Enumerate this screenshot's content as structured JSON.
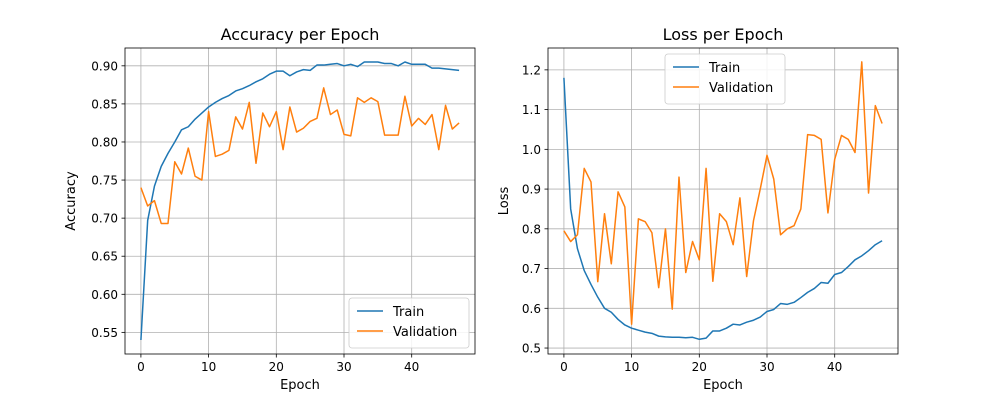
{
  "colors": {
    "train": "#1f77b4",
    "validation": "#ff7f0e",
    "grid": "#b0b0b0",
    "axis": "#000000"
  },
  "chart_data": [
    {
      "type": "line",
      "title": "Accuracy per Epoch",
      "xlabel": "Epoch",
      "ylabel": "Accuracy",
      "xlim": [
        -2.35,
        49.35
      ],
      "ylim": [
        0.5216,
        0.9234
      ],
      "xticks": [
        0,
        10,
        20,
        30,
        40
      ],
      "yticks": [
        0.55,
        0.6,
        0.65,
        0.7,
        0.75,
        0.8,
        0.85,
        0.9
      ],
      "ytick_labels": [
        "0.55",
        "0.60",
        "0.65",
        "0.70",
        "0.75",
        "0.80",
        "0.85",
        "0.90"
      ],
      "grid": true,
      "legend_position": "lower-right",
      "series": [
        {
          "name": "Train",
          "color": "#1f77b4",
          "x": [
            0,
            1,
            2,
            3,
            4,
            5,
            6,
            7,
            8,
            9,
            10,
            11,
            12,
            13,
            14,
            15,
            16,
            17,
            18,
            19,
            20,
            21,
            22,
            23,
            24,
            25,
            26,
            27,
            28,
            29,
            30,
            31,
            32,
            33,
            34,
            35,
            36,
            37,
            38,
            39,
            40,
            41,
            42,
            43,
            44,
            45,
            46,
            47
          ],
          "values": [
            0.54,
            0.697,
            0.742,
            0.768,
            0.785,
            0.8,
            0.816,
            0.82,
            0.83,
            0.838,
            0.846,
            0.852,
            0.857,
            0.861,
            0.867,
            0.87,
            0.874,
            0.879,
            0.883,
            0.889,
            0.893,
            0.893,
            0.887,
            0.892,
            0.895,
            0.894,
            0.901,
            0.901,
            0.902,
            0.903,
            0.9,
            0.902,
            0.899,
            0.905,
            0.905,
            0.905,
            0.903,
            0.903,
            0.9,
            0.905,
            0.902,
            0.902,
            0.902,
            0.897,
            0.897,
            0.896,
            0.895,
            0.894
          ]
        },
        {
          "name": "Validation",
          "color": "#ff7f0e",
          "x": [
            0,
            1,
            2,
            3,
            4,
            5,
            6,
            7,
            8,
            9,
            10,
            11,
            12,
            13,
            14,
            15,
            16,
            17,
            18,
            19,
            20,
            21,
            22,
            23,
            24,
            25,
            26,
            27,
            28,
            29,
            30,
            31,
            32,
            33,
            34,
            35,
            36,
            37,
            38,
            39,
            40,
            41,
            42,
            43,
            44,
            45,
            46,
            47
          ],
          "values": [
            0.74,
            0.716,
            0.723,
            0.693,
            0.693,
            0.774,
            0.758,
            0.792,
            0.755,
            0.75,
            0.84,
            0.781,
            0.784,
            0.789,
            0.833,
            0.817,
            0.852,
            0.772,
            0.838,
            0.82,
            0.84,
            0.79,
            0.846,
            0.813,
            0.818,
            0.827,
            0.831,
            0.871,
            0.836,
            0.842,
            0.81,
            0.808,
            0.858,
            0.852,
            0.858,
            0.853,
            0.809,
            0.809,
            0.809,
            0.86,
            0.821,
            0.831,
            0.823,
            0.836,
            0.79,
            0.848,
            0.817,
            0.825
          ]
        }
      ]
    },
    {
      "type": "line",
      "title": "Loss per Epoch",
      "xlabel": "Epoch",
      "ylabel": "Loss",
      "xlim": [
        -2.35,
        49.35
      ],
      "ylim": [
        0.485,
        1.255
      ],
      "xticks": [
        0,
        10,
        20,
        30,
        40
      ],
      "yticks": [
        0.5,
        0.6,
        0.7,
        0.8,
        0.9,
        1.0,
        1.1,
        1.2
      ],
      "ytick_labels": [
        "0.5",
        "0.6",
        "0.7",
        "0.8",
        "0.9",
        "1.0",
        "1.1",
        "1.2"
      ],
      "grid": true,
      "legend_position": "upper-center",
      "series": [
        {
          "name": "Train",
          "color": "#1f77b4",
          "x": [
            0,
            1,
            2,
            3,
            4,
            5,
            6,
            7,
            8,
            9,
            10,
            11,
            12,
            13,
            14,
            15,
            16,
            17,
            18,
            19,
            20,
            21,
            22,
            23,
            24,
            25,
            26,
            27,
            28,
            29,
            30,
            31,
            32,
            33,
            34,
            35,
            36,
            37,
            38,
            39,
            40,
            41,
            42,
            43,
            44,
            45,
            46,
            47
          ],
          "values": [
            1.18,
            0.85,
            0.75,
            0.695,
            0.66,
            0.628,
            0.6,
            0.59,
            0.572,
            0.558,
            0.55,
            0.545,
            0.54,
            0.537,
            0.53,
            0.528,
            0.527,
            0.527,
            0.526,
            0.527,
            0.522,
            0.525,
            0.543,
            0.543,
            0.55,
            0.56,
            0.558,
            0.565,
            0.57,
            0.578,
            0.592,
            0.597,
            0.612,
            0.61,
            0.615,
            0.627,
            0.64,
            0.65,
            0.665,
            0.663,
            0.685,
            0.69,
            0.705,
            0.722,
            0.732,
            0.745,
            0.76,
            0.77
          ]
        },
        {
          "name": "Validation",
          "color": "#ff7f0e",
          "x": [
            0,
            1,
            2,
            3,
            4,
            5,
            6,
            7,
            8,
            9,
            10,
            11,
            12,
            13,
            14,
            15,
            16,
            17,
            18,
            19,
            20,
            21,
            22,
            23,
            24,
            25,
            26,
            27,
            28,
            29,
            30,
            31,
            32,
            33,
            34,
            35,
            36,
            37,
            38,
            39,
            40,
            41,
            42,
            43,
            44,
            45,
            46,
            47
          ],
          "values": [
            0.795,
            0.768,
            0.785,
            0.952,
            0.918,
            0.667,
            0.838,
            0.712,
            0.893,
            0.855,
            0.56,
            0.825,
            0.818,
            0.79,
            0.652,
            0.8,
            0.598,
            0.93,
            0.69,
            0.768,
            0.722,
            0.952,
            0.668,
            0.838,
            0.818,
            0.76,
            0.878,
            0.68,
            0.82,
            0.9,
            0.985,
            0.925,
            0.785,
            0.8,
            0.808,
            0.85,
            1.037,
            1.035,
            1.025,
            0.84,
            0.975,
            1.035,
            1.025,
            0.992,
            1.22,
            0.89,
            1.11,
            1.065
          ]
        }
      ]
    }
  ]
}
